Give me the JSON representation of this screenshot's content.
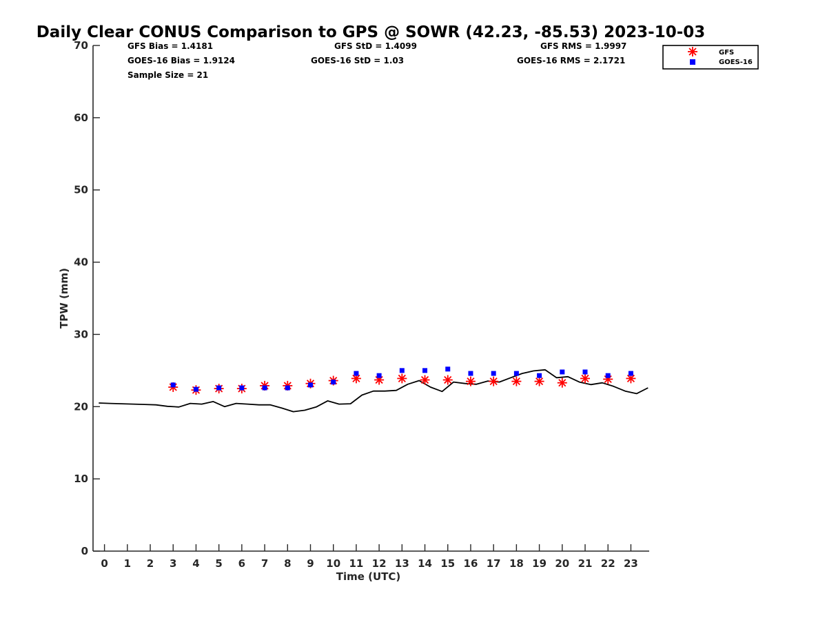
{
  "chart_data": {
    "type": "line+scatter",
    "title": "Daily Clear CONUS Comparison to GPS @ SOWR (42.23, -85.53) 2023-10-03",
    "xlabel": "Time (UTC)",
    "ylabel": "TPW (mm)",
    "xlim": [
      -0.5,
      23.8
    ],
    "ylim": [
      0,
      70
    ],
    "xticks": [
      "0",
      "1",
      "2",
      "3",
      "4",
      "5",
      "6",
      "7",
      "8",
      "9",
      "10",
      "11",
      "12",
      "13",
      "14",
      "15",
      "16",
      "17",
      "18",
      "19",
      "20",
      "21",
      "22",
      "23"
    ],
    "yticks": [
      "0",
      "10",
      "20",
      "30",
      "40",
      "50",
      "60",
      "70"
    ],
    "stats": {
      "gfs_bias": "GFS Bias = 1.4181",
      "goes_bias": "GOES-16 Bias = 1.9124",
      "sample_size": "Sample Size = 21",
      "gfs_std": "GFS StD = 1.4099",
      "goes_std": "GOES-16 StD = 1.03",
      "gfs_rms": "GFS RMS = 1.9997",
      "goes_rms": "GOES-16 RMS = 2.1721"
    },
    "legend": {
      "placement": "top-right",
      "entries": [
        "GFS",
        "GOES-16"
      ]
    },
    "series": [
      {
        "name": "GPS",
        "style": "line",
        "color": "#000000",
        "x": [
          -0.25,
          0.25,
          0.75,
          1.25,
          1.75,
          2.25,
          2.75,
          3.25,
          3.75,
          4.25,
          4.75,
          5.25,
          5.75,
          6.25,
          6.75,
          7.25,
          7.75,
          8.25,
          8.75,
          9.25,
          9.75,
          10.25,
          10.75,
          11.25,
          11.75,
          12.25,
          12.75,
          13.25,
          13.75,
          14.25,
          14.75,
          15.25,
          15.75,
          16.25,
          16.75,
          17.25,
          17.75,
          18.25,
          18.75,
          19.25,
          19.75,
          20.25,
          20.75,
          21.25,
          21.75,
          22.25,
          22.75,
          23.25,
          23.75
        ],
        "values": [
          20.5,
          20.45,
          20.4,
          20.35,
          20.3,
          20.25,
          20.05,
          19.95,
          20.45,
          20.35,
          20.7,
          20.0,
          20.45,
          20.35,
          20.25,
          20.25,
          19.8,
          19.3,
          19.5,
          19.95,
          20.8,
          20.35,
          20.4,
          21.6,
          22.15,
          22.15,
          22.25,
          23.1,
          23.6,
          22.7,
          22.1,
          23.4,
          23.2,
          23.1,
          23.55,
          23.4,
          24.0,
          24.6,
          24.95,
          25.1,
          24.0,
          24.15,
          23.4,
          23.05,
          23.3,
          22.8,
          22.15,
          21.8,
          22.6
        ]
      },
      {
        "name": "GFS",
        "style": "asterisk",
        "color": "#ff0000",
        "x": [
          3,
          4,
          5,
          6,
          7,
          8,
          9,
          10,
          11,
          12,
          13,
          14,
          15,
          16,
          17,
          18,
          19,
          20,
          21,
          22,
          23
        ],
        "values": [
          22.7,
          22.3,
          22.5,
          22.5,
          22.9,
          22.9,
          23.2,
          23.6,
          23.9,
          23.7,
          23.9,
          23.7,
          23.7,
          23.5,
          23.5,
          23.5,
          23.5,
          23.3,
          23.9,
          23.8,
          23.9
        ]
      },
      {
        "name": "GOES-16",
        "style": "square",
        "color": "#0000ff",
        "x": [
          3,
          4,
          5,
          6,
          7,
          8,
          9,
          10,
          11,
          12,
          13,
          14,
          15,
          16,
          17,
          18,
          19,
          20,
          21,
          22,
          23
        ],
        "values": [
          23.0,
          22.4,
          22.6,
          22.6,
          22.6,
          22.6,
          23.0,
          23.4,
          24.6,
          24.3,
          25.0,
          25.0,
          25.2,
          24.6,
          24.6,
          24.6,
          24.3,
          24.8,
          24.8,
          24.3,
          24.6
        ]
      }
    ]
  }
}
